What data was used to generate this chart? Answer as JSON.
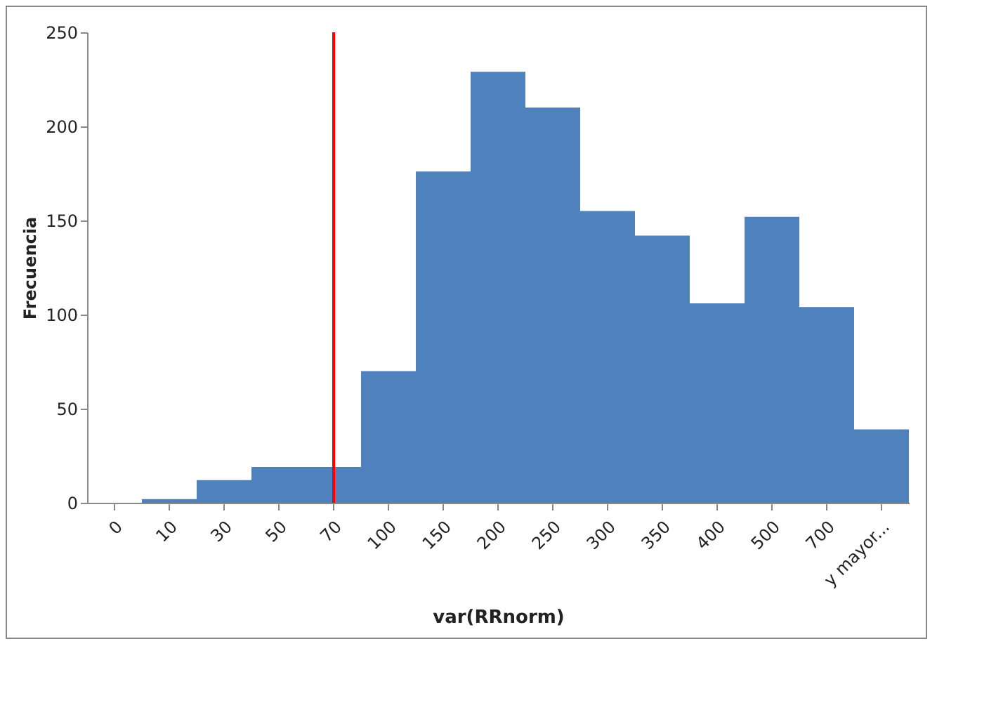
{
  "chart_data": {
    "type": "bar",
    "xlabel": "var(RRnorm)",
    "ylabel": "Frecuencia",
    "categories": [
      "0",
      "10",
      "30",
      "50",
      "70",
      "100",
      "150",
      "200",
      "250",
      "300",
      "350",
      "400",
      "500",
      "700",
      "y mayor..."
    ],
    "values": [
      0,
      2,
      12,
      19,
      19,
      70,
      176,
      229,
      210,
      155,
      142,
      106,
      152,
      104,
      39
    ],
    "color": "#4f81bd",
    "ylim": [
      0,
      250
    ],
    "yticks": [
      0,
      50,
      100,
      150,
      200,
      250
    ],
    "grid": false,
    "ref_lines": [
      {
        "axis": "x",
        "value": "70",
        "color": "#ff0000"
      }
    ]
  }
}
